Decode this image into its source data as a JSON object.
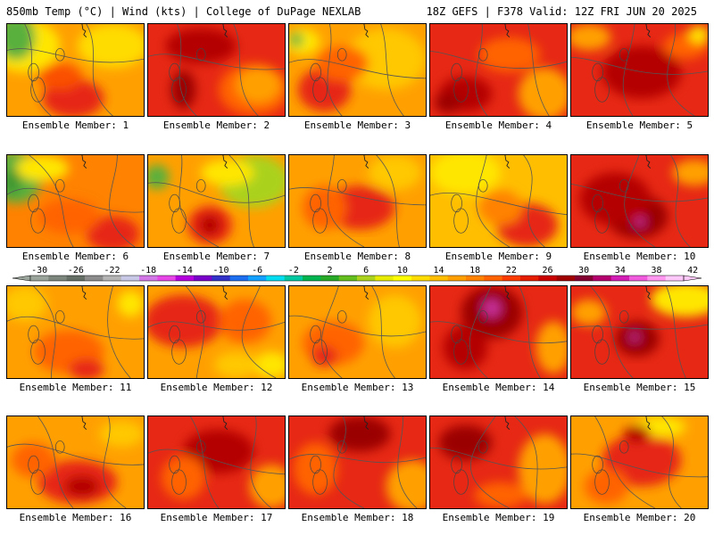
{
  "header": {
    "left": "850mb Temp (°C) | Wind (kts) | College of DuPage NEXLAB",
    "right": "18Z GEFS | F378 Valid: 12Z FRI JUN 20 2025"
  },
  "member_label_prefix": "Ensemble Member:",
  "members": [
    {
      "number": 1,
      "label": "Ensemble Member: 1"
    },
    {
      "number": 2,
      "label": "Ensemble Member: 2"
    },
    {
      "number": 3,
      "label": "Ensemble Member: 3"
    },
    {
      "number": 4,
      "label": "Ensemble Member: 4"
    },
    {
      "number": 5,
      "label": "Ensemble Member: 5"
    },
    {
      "number": 6,
      "label": "Ensemble Member: 6"
    },
    {
      "number": 7,
      "label": "Ensemble Member: 7"
    },
    {
      "number": 8,
      "label": "Ensemble Member: 8"
    },
    {
      "number": 9,
      "label": "Ensemble Member: 9"
    },
    {
      "number": 10,
      "label": "Ensemble Member: 10"
    },
    {
      "number": 11,
      "label": "Ensemble Member: 11"
    },
    {
      "number": 12,
      "label": "Ensemble Member: 12"
    },
    {
      "number": 13,
      "label": "Ensemble Member: 13"
    },
    {
      "number": 14,
      "label": "Ensemble Member: 14"
    },
    {
      "number": 15,
      "label": "Ensemble Member: 15"
    },
    {
      "number": 16,
      "label": "Ensemble Member: 16"
    },
    {
      "number": 17,
      "label": "Ensemble Member: 17"
    },
    {
      "number": 18,
      "label": "Ensemble Member: 18"
    },
    {
      "number": 19,
      "label": "Ensemble Member: 19"
    },
    {
      "number": 20,
      "label": "Ensemble Member: 20"
    }
  ],
  "colorbar": {
    "tick_labels": [
      "-30",
      "-26",
      "-22",
      "-18",
      "-14",
      "-10",
      "-6",
      "-2",
      "2",
      "6",
      "10",
      "14",
      "18",
      "22",
      "26",
      "30",
      "34",
      "38",
      "42"
    ],
    "colors": [
      "#9aa49a",
      "#7c867c",
      "#656f65",
      "#8c8c8c",
      "#b4b4b4",
      "#c8c8e6",
      "#d278e6",
      "#e646e6",
      "#b400dc",
      "#7800c8",
      "#3232c8",
      "#1e6ef0",
      "#14a0ff",
      "#00dcf0",
      "#00c8a0",
      "#00b450",
      "#28aa28",
      "#64be1e",
      "#aad21e",
      "#e6eb00",
      "#ffff00",
      "#ffdc00",
      "#ffbe00",
      "#ffa000",
      "#ff8200",
      "#ff6400",
      "#fa3c00",
      "#e61e00",
      "#c80000",
      "#a00000",
      "#820032",
      "#b4006e",
      "#d21eb4",
      "#f05adc",
      "#ff96f0",
      "#ffc8fa"
    ]
  },
  "colors": {
    "low_temp_green": "#5ab03c",
    "yellow": "#ffe600",
    "orange": "#ffa000",
    "red": "#e62814",
    "dark_red": "#9b0000",
    "magenta": "#c8329b",
    "contour_line": "#555555"
  }
}
